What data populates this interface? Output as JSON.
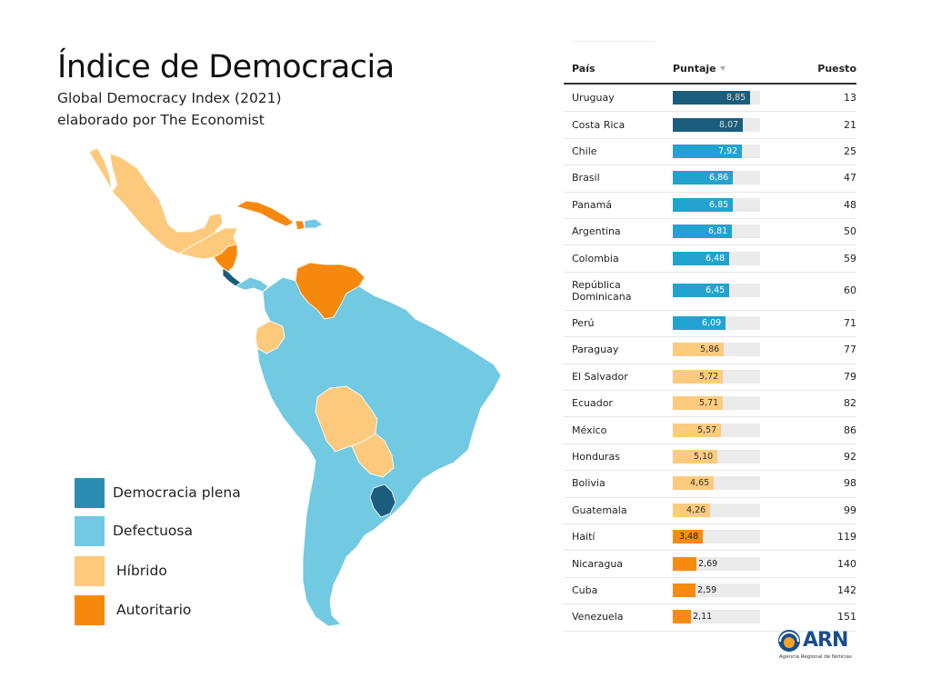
{
  "header": {
    "title": "Índice de Democracia",
    "subtitle_line1": "Global Democracy Index (2021)",
    "subtitle_line2": "elaborado por The Economist"
  },
  "colors": {
    "full": "#1b5d7c",
    "flawed": "#22a3cf",
    "hybrid": "#fccb7d",
    "authoritarian": "#f68b0f",
    "map_full": "#1b5d7c",
    "map_flawed": "#72c9e2",
    "map_hybrid": "#fdc97c",
    "map_authoritarian": "#f6890d",
    "legend_full": "#2a8cb0",
    "legend_flawed": "#72c9e2",
    "legend_hybrid": "#fdc97c",
    "legend_authoritarian": "#f6890d"
  },
  "legend": [
    {
      "label": "Democracia plena",
      "category": "full"
    },
    {
      "label": "Defectuosa",
      "category": "flawed"
    },
    {
      "label": "Híbrido",
      "category": "hybrid"
    },
    {
      "label": "Autoritario",
      "category": "authoritarian"
    }
  ],
  "table": {
    "col_country": "País",
    "col_score": "Puntaje",
    "col_rank": "Puesto"
  },
  "chart_data": {
    "type": "bar",
    "xlim": [
      0,
      10
    ],
    "rows": [
      {
        "country": "Uruguay",
        "score": 8.85,
        "label": "8,85",
        "rank": "13",
        "category": "full"
      },
      {
        "country": "Costa Rica",
        "score": 8.07,
        "label": "8,07",
        "rank": "21",
        "category": "full"
      },
      {
        "country": "Chile",
        "score": 7.92,
        "label": "7,92",
        "rank": "25",
        "category": "flawed"
      },
      {
        "country": "Brasil",
        "score": 6.86,
        "label": "6,86",
        "rank": "47",
        "category": "flawed"
      },
      {
        "country": "Panamá",
        "score": 6.85,
        "label": "6,85",
        "rank": "48",
        "category": "flawed"
      },
      {
        "country": "Argentina",
        "score": 6.81,
        "label": "6,81",
        "rank": "50",
        "category": "flawed"
      },
      {
        "country": "Colombia",
        "score": 6.48,
        "label": "6,48",
        "rank": "59",
        "category": "flawed"
      },
      {
        "country": "República Dominicana",
        "score": 6.45,
        "label": "6,45",
        "rank": "60",
        "category": "flawed"
      },
      {
        "country": "Perú",
        "score": 6.09,
        "label": "6,09",
        "rank": "71",
        "category": "flawed"
      },
      {
        "country": "Paraguay",
        "score": 5.86,
        "label": "5,86",
        "rank": "77",
        "category": "hybrid"
      },
      {
        "country": "El Salvador",
        "score": 5.72,
        "label": "5,72",
        "rank": "79",
        "category": "hybrid"
      },
      {
        "country": "Ecuador",
        "score": 5.71,
        "label": "5,71",
        "rank": "82",
        "category": "hybrid"
      },
      {
        "country": "México",
        "score": 5.57,
        "label": "5,57",
        "rank": "86",
        "category": "hybrid"
      },
      {
        "country": "Honduras",
        "score": 5.1,
        "label": "5,10",
        "rank": "92",
        "category": "hybrid"
      },
      {
        "country": "Bolivia",
        "score": 4.65,
        "label": "4,65",
        "rank": "98",
        "category": "hybrid"
      },
      {
        "country": "Guatemala",
        "score": 4.26,
        "label": "4,26",
        "rank": "99",
        "category": "hybrid"
      },
      {
        "country": "Haití",
        "score": 3.48,
        "label": "3,48",
        "rank": "119",
        "category": "authoritarian"
      },
      {
        "country": "Nicaragua",
        "score": 2.69,
        "label": "2,69",
        "rank": "140",
        "category": "authoritarian"
      },
      {
        "country": "Cuba",
        "score": 2.59,
        "label": "2,59",
        "rank": "142",
        "category": "authoritarian"
      },
      {
        "country": "Venezuela",
        "score": 2.11,
        "label": "2,11",
        "rank": "151",
        "category": "authoritarian"
      }
    ]
  },
  "logo": {
    "text": "ARN",
    "sub": "Agencia Regional de Noticias"
  }
}
